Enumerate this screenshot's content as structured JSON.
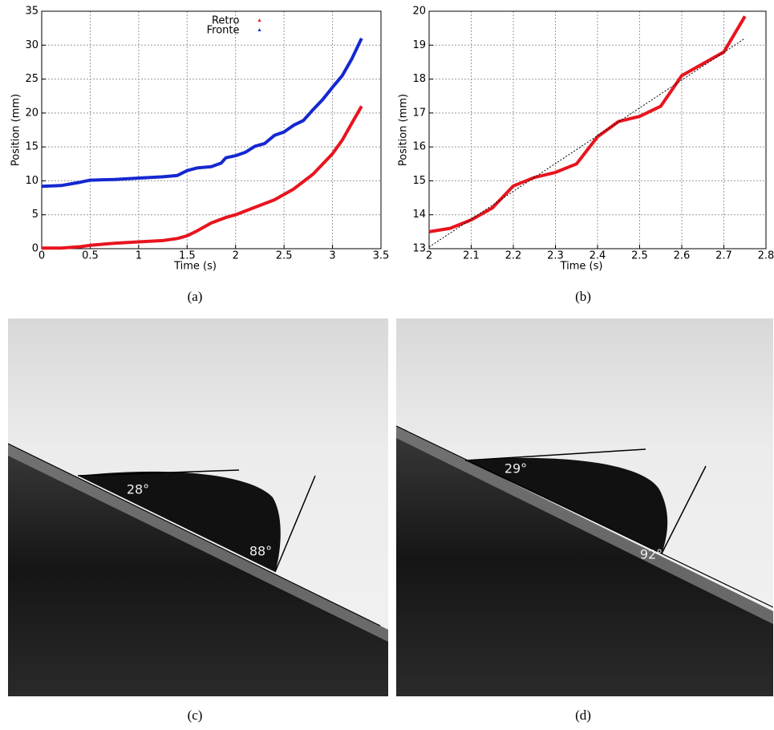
{
  "chart_data": [
    {
      "type": "line",
      "xlabel": "Time (s)",
      "ylabel": "Position (mm)",
      "xlim": [
        0,
        3.5
      ],
      "xticks": [
        0,
        0.5,
        1,
        1.5,
        2,
        2.5,
        3,
        3.5
      ],
      "ylim": [
        0,
        35
      ],
      "yticks": [
        0,
        5,
        10,
        15,
        20,
        25,
        30,
        35
      ],
      "grid": true,
      "legend": "top",
      "series": [
        {
          "name": "Retro",
          "color": "#e8141e",
          "x": [
            0,
            0.2,
            0.4,
            0.5,
            0.75,
            1,
            1.25,
            1.4,
            1.5,
            1.6,
            1.75,
            1.9,
            2.0,
            2.2,
            2.4,
            2.6,
            2.8,
            3.0,
            3.1,
            3.2,
            3.3
          ],
          "values": [
            0.1,
            0.1,
            0.3,
            0.5,
            0.8,
            1.0,
            1.2,
            1.5,
            1.9,
            2.6,
            3.8,
            4.6,
            5.0,
            6.1,
            7.2,
            8.8,
            11,
            14,
            16,
            18.5,
            21
          ]
        },
        {
          "name": "Fronte",
          "color": "#1428d2",
          "x": [
            0,
            0.2,
            0.4,
            0.5,
            0.75,
            1,
            1.25,
            1.4,
            1.5,
            1.6,
            1.75,
            1.85,
            1.9,
            2.0,
            2.1,
            2.2,
            2.3,
            2.4,
            2.5,
            2.6,
            2.7,
            2.8,
            2.9,
            3.0,
            3.1,
            3.2,
            3.3
          ],
          "values": [
            9.2,
            9.3,
            9.8,
            10.1,
            10.2,
            10.4,
            10.6,
            10.8,
            11.5,
            11.9,
            12.1,
            12.6,
            13.4,
            13.7,
            14.2,
            15.1,
            15.5,
            16.7,
            17.2,
            18.2,
            18.9,
            20.5,
            22,
            23.8,
            25.5,
            28,
            31
          ]
        }
      ]
    },
    {
      "type": "line",
      "xlabel": "Time (s)",
      "ylabel": "Position (mm)",
      "xlim": [
        2,
        2.8
      ],
      "xticks": [
        2,
        2.1,
        2.2,
        2.3,
        2.4,
        2.5,
        2.6,
        2.7,
        2.8
      ],
      "ylim": [
        13,
        20
      ],
      "yticks": [
        13,
        14,
        15,
        16,
        17,
        18,
        19,
        20
      ],
      "grid": true,
      "series": [
        {
          "color": "#e8141e",
          "x": [
            2.0,
            2.05,
            2.1,
            2.15,
            2.2,
            2.25,
            2.3,
            2.35,
            2.4,
            2.45,
            2.5,
            2.55,
            2.6,
            2.65,
            2.7,
            2.75
          ],
          "values": [
            13.5,
            13.6,
            13.85,
            14.2,
            14.85,
            15.1,
            15.25,
            15.5,
            16.3,
            16.75,
            16.9,
            17.2,
            18.1,
            18.45,
            18.8,
            19.85
          ]
        },
        {
          "color": "#000000",
          "style": "dotted",
          "x": [
            2.0,
            2.75
          ],
          "values": [
            13.05,
            19.2
          ]
        }
      ]
    }
  ],
  "captions": [
    "(a)",
    "(b)",
    "(c)",
    "(d)"
  ],
  "photos": [
    {
      "angles": [
        "28°",
        "88°"
      ]
    },
    {
      "angles": [
        "29°",
        "92°"
      ]
    }
  ]
}
